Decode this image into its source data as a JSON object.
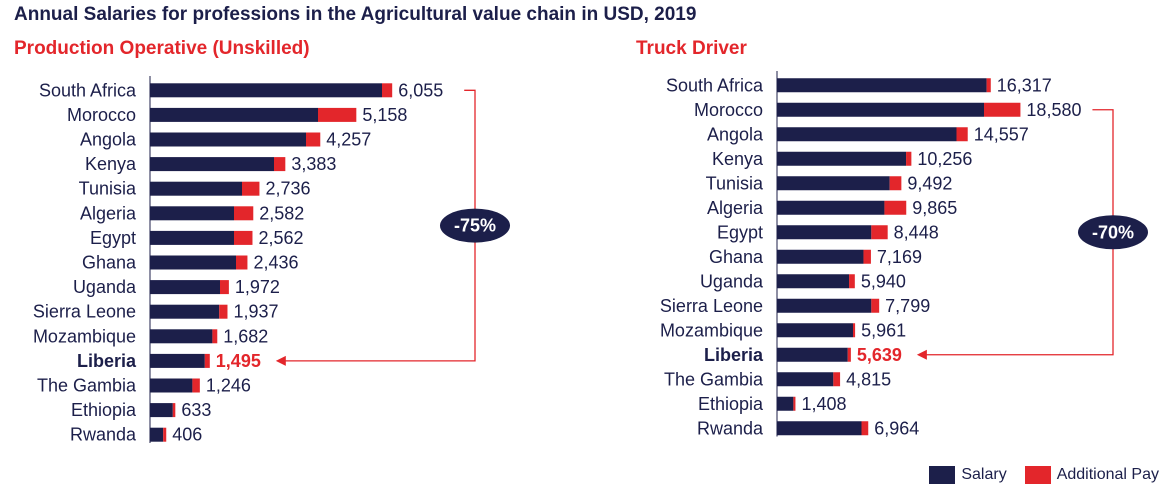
{
  "title": "Annual Salaries for professions in the Agricultural value chain in USD, 2019",
  "colors": {
    "salary": "#1c1f4a",
    "additional": "#e3262b",
    "axis": "#1c1f4a",
    "label": "#1c1f4a",
    "highlight": "#e3262b"
  },
  "legend": {
    "salary": "Salary",
    "additional": "Additional Pay"
  },
  "chart_data": [
    {
      "type": "bar",
      "orientation": "horizontal",
      "stacked": true,
      "title": "Production Operative (Unskilled)",
      "categories": [
        "South Africa",
        "Morocco",
        "Angola",
        "Kenya",
        "Tunisia",
        "Algeria",
        "Egypt",
        "Ghana",
        "Uganda",
        "Sierra Leone",
        "Mozambique",
        "Liberia",
        "The Gambia",
        "Ethiopia",
        "Rwanda"
      ],
      "totals": [
        6055,
        5158,
        4257,
        3383,
        2736,
        2582,
        2562,
        2436,
        1972,
        1937,
        1682,
        1495,
        1246,
        633,
        406
      ],
      "total_labels": [
        "6,055",
        "5,158",
        "4,257",
        "3,383",
        "2,736",
        "2,582",
        "2,562",
        "2,436",
        "1,972",
        "1,937",
        "1,682",
        "1,495",
        "1,246",
        "633",
        "406"
      ],
      "series": [
        {
          "name": "Salary",
          "values": [
            5800,
            4200,
            3900,
            3100,
            2300,
            2100,
            2100,
            2150,
            1750,
            1730,
            1560,
            1370,
            1060,
            570,
            330
          ]
        },
        {
          "name": "Additional Pay",
          "values": [
            255,
            958,
            357,
            283,
            436,
            482,
            462,
            286,
            222,
            207,
            122,
            125,
            186,
            63,
            76
          ]
        }
      ],
      "xlim": [
        0,
        6100
      ],
      "highlight": "Liberia",
      "annotation": "-75%"
    },
    {
      "type": "bar",
      "orientation": "horizontal",
      "stacked": true,
      "title": "Truck Driver",
      "categories": [
        "South Africa",
        "Morocco",
        "Angola",
        "Kenya",
        "Tunisia",
        "Algeria",
        "Egypt",
        "Ghana",
        "Uganda",
        "Sierra Leone",
        "Mozambique",
        "Liberia",
        "The Gambia",
        "Ethiopia",
        "Rwanda"
      ],
      "totals": [
        16317,
        18580,
        14557,
        10256,
        9492,
        9865,
        8448,
        7169,
        5940,
        7799,
        5961,
        5639,
        4815,
        1408,
        6964
      ],
      "total_labels": [
        "16,317",
        "18,580",
        "14,557",
        "10,256",
        "9,492",
        "9,865",
        "8,448",
        "7,169",
        "5,940",
        "7,799",
        "5,961",
        "5,639",
        "4,815",
        "1,408",
        "6,964"
      ],
      "series": [
        {
          "name": "Salary",
          "values": [
            16000,
            15800,
            13700,
            9850,
            8600,
            8200,
            7200,
            6600,
            5500,
            7200,
            5800,
            5400,
            4300,
            1250,
            6450
          ]
        },
        {
          "name": "Additional Pay",
          "values": [
            317,
            2780,
            857,
            406,
            892,
            1665,
            1248,
            569,
            440,
            599,
            161,
            239,
            515,
            158,
            514
          ]
        }
      ],
      "xlim": [
        0,
        18700
      ],
      "highlight": "Liberia",
      "annotation": "-70%"
    }
  ]
}
